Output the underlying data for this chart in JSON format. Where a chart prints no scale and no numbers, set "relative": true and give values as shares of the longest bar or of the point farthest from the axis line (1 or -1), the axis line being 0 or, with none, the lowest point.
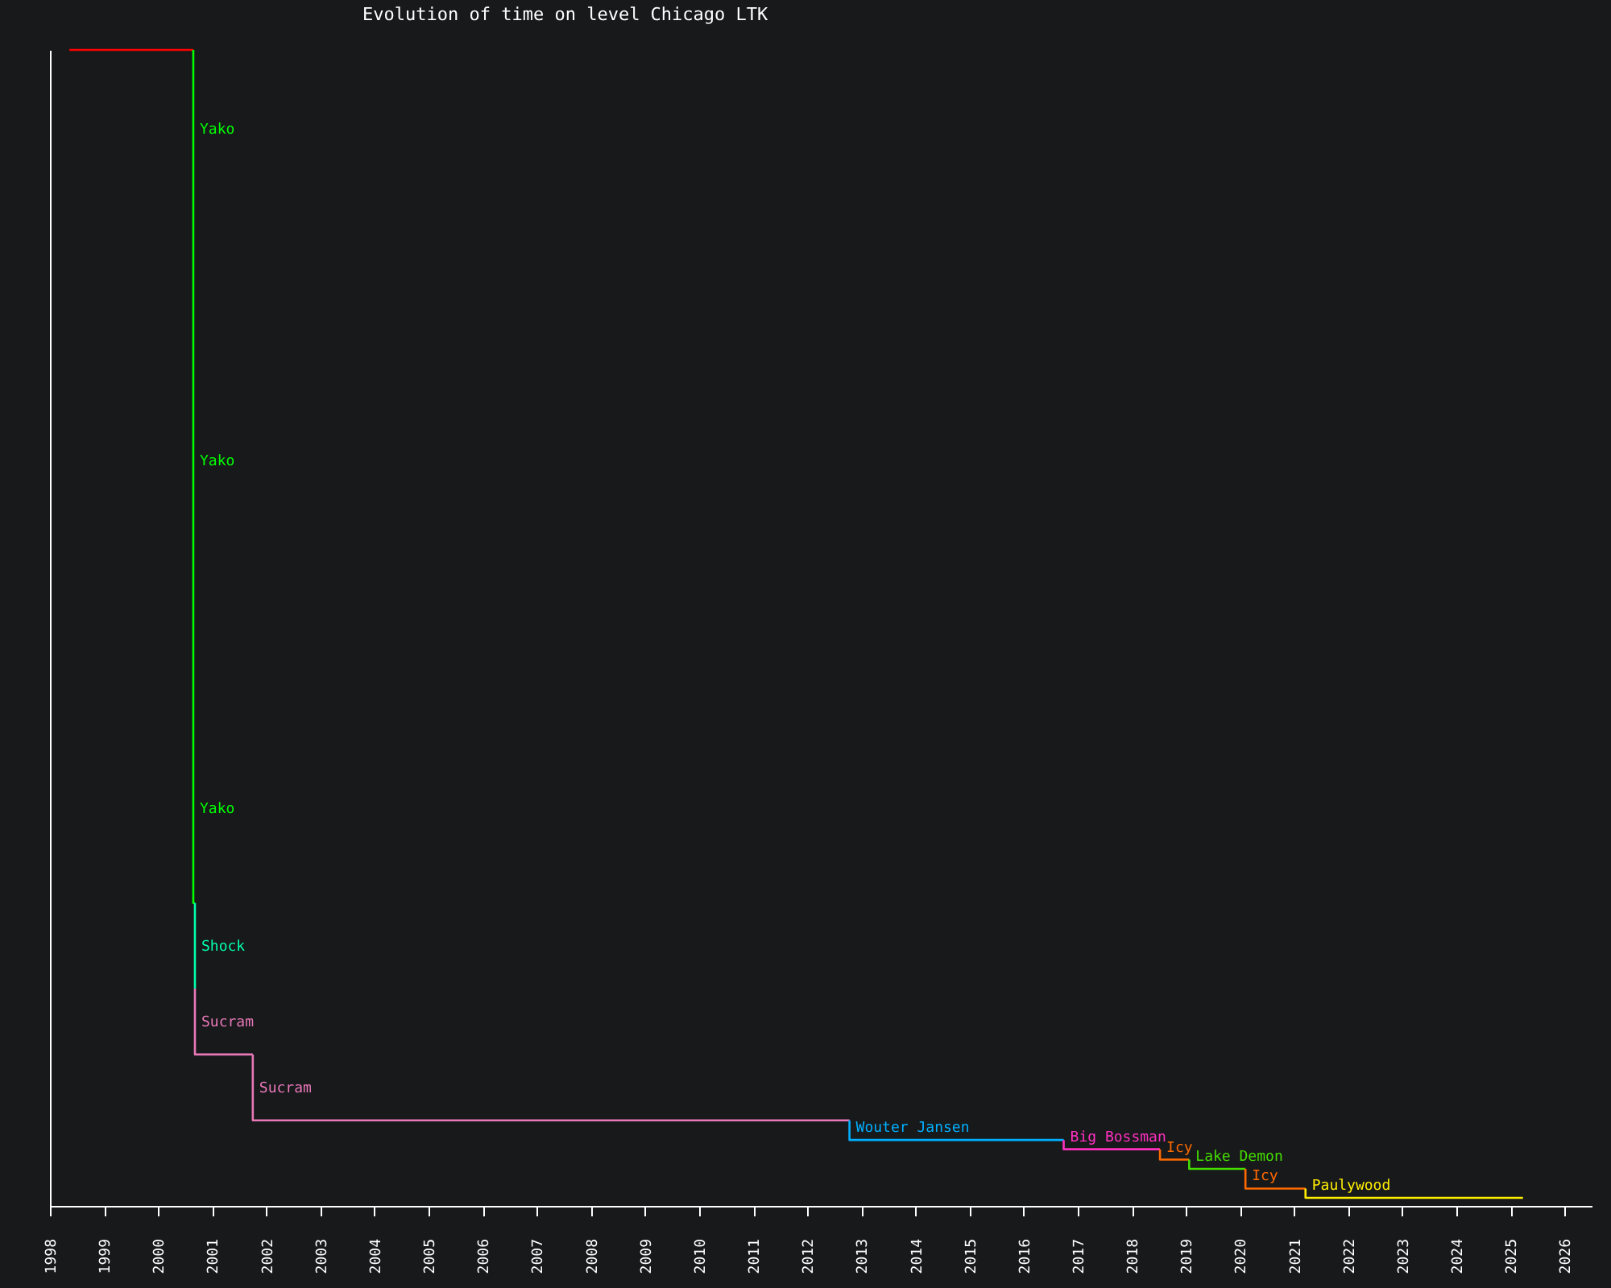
{
  "chart_data": {
    "type": "step",
    "title": "Evolution of time on level Chicago LTK",
    "relative": true,
    "xlim": [
      1998,
      2026.5
    ],
    "xticks": [
      1998,
      1999,
      2000,
      2001,
      2002,
      2003,
      2004,
      2005,
      2006,
      2007,
      2008,
      2009,
      2010,
      2011,
      2012,
      2013,
      2014,
      2015,
      2016,
      2017,
      2018,
      2019,
      2020,
      2021,
      2022,
      2023,
      2024,
      2025,
      2026
    ],
    "x": [
      1998.36,
      2000.65,
      2000.65,
      2000.65,
      2000.68,
      2000.68,
      2001.75,
      2012.78,
      2016.74,
      2018.52,
      2019.06,
      2020.1,
      2021.21,
      2025.23
    ],
    "series": [
      {
        "color": "#ff0000",
        "values": [
          1.0,
          1.0,
          null,
          null,
          null,
          null,
          null,
          null,
          null,
          null,
          null,
          null,
          null,
          null
        ]
      },
      {
        "name": "Yako",
        "color": "#00ff00",
        "values": [
          null,
          1.0,
          0.864,
          0.426,
          0.262,
          null,
          null,
          null,
          null,
          null,
          null,
          null,
          null,
          null
        ]
      },
      {
        "name": "Shock",
        "color": "#00ffaa",
        "values": [
          null,
          null,
          null,
          null,
          0.262,
          0.188,
          null,
          null,
          null,
          null,
          null,
          null,
          null,
          null
        ]
      },
      {
        "name": "Sucram",
        "color": "#e878b8",
        "values": [
          null,
          null,
          null,
          null,
          null,
          0.188,
          0.131,
          null,
          null,
          null,
          null,
          null,
          null,
          null
        ]
      },
      {
        "name": "Sucram",
        "color": "#e878b8",
        "values": [
          null,
          null,
          null,
          null,
          null,
          null,
          0.131,
          0.074,
          null,
          null,
          null,
          null,
          null,
          null
        ]
      },
      {
        "name": "Wouter Jansen",
        "color": "#00b0ff",
        "values": [
          null,
          null,
          null,
          null,
          null,
          null,
          null,
          0.074,
          0.057,
          null,
          null,
          null,
          null,
          null
        ]
      },
      {
        "name": "Big Bossman",
        "color": "#ff30c0",
        "values": [
          null,
          null,
          null,
          null,
          null,
          null,
          null,
          null,
          0.057,
          0.049,
          null,
          null,
          null,
          null
        ]
      },
      {
        "name": "Icy",
        "color": "#ff6a00",
        "values": [
          null,
          null,
          null,
          null,
          null,
          null,
          null,
          null,
          null,
          0.049,
          0.04,
          null,
          null,
          null
        ]
      },
      {
        "name": "Lake Demon",
        "color": "#44dd00",
        "values": [
          null,
          null,
          null,
          null,
          null,
          null,
          null,
          null,
          null,
          null,
          0.04,
          0.032,
          null,
          null
        ]
      },
      {
        "name": "Icy",
        "color": "#ff6a00",
        "values": [
          null,
          null,
          null,
          null,
          null,
          null,
          null,
          null,
          null,
          null,
          null,
          0.032,
          0.015,
          null
        ]
      },
      {
        "name": "Paulywood",
        "color": "#ffee00",
        "values": [
          null,
          null,
          null,
          null,
          null,
          null,
          null,
          null,
          null,
          null,
          null,
          null,
          0.015,
          0.007
        ]
      }
    ]
  }
}
